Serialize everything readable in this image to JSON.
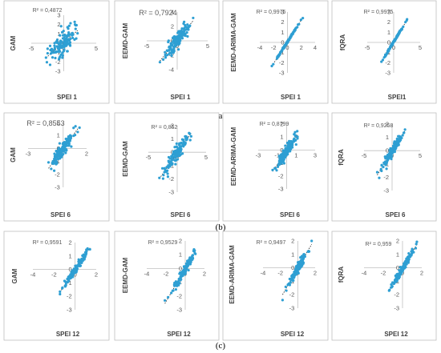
{
  "panel_labels": [
    "(a)",
    "(b)",
    "(c)"
  ],
  "chart_data": [
    {
      "type": "scatter",
      "ylabel": "GAM",
      "xlabel": "SPEI 1",
      "annotation": "R² = 0,4872",
      "xlim": [
        -5,
        5
      ],
      "ylim": [
        -3,
        3
      ],
      "xticks": [
        "-5",
        "0",
        "5"
      ],
      "yticks": [
        "3",
        "2",
        "1",
        "0",
        "-1",
        "-2",
        "-3"
      ],
      "r2": 0.4872
    },
    {
      "type": "scatter",
      "ylabel": "EEMD-GAM",
      "xlabel": "SPEI 1",
      "annotation": "R² = 0,7924",
      "xlim": [
        -5,
        5
      ],
      "ylim": [
        -4,
        4
      ],
      "xticks": [
        "-5",
        "0",
        "5"
      ],
      "yticks": [
        "4",
        "2",
        "0",
        "-2",
        "-4"
      ],
      "r2": 0.7924
    },
    {
      "type": "scatter",
      "ylabel": "EEMD-ARIMA-GAM",
      "xlabel": "SPEI 1",
      "annotation": "R² = 0,9975",
      "xlim": [
        -4,
        4
      ],
      "ylim": [
        -3,
        3
      ],
      "xticks": [
        "-4",
        "-2",
        "0",
        "2",
        "4"
      ],
      "yticks": [
        "3",
        "2",
        "1",
        "0",
        "-1",
        "-2",
        "-3"
      ],
      "r2": 0.9975
    },
    {
      "type": "scatter",
      "ylabel": "fQRA",
      "xlabel": "SPEI1",
      "annotation": "R² = 0,9975",
      "xlim": [
        -5,
        5
      ],
      "ylim": [
        -3,
        3
      ],
      "xticks": [
        "-5",
        "0",
        "5"
      ],
      "yticks": [
        "3",
        "2",
        "1",
        "0",
        "-1",
        "-2",
        "-3"
      ],
      "r2": 0.9975
    },
    {
      "type": "scatter",
      "ylabel": "GAM",
      "xlabel": "SPEI 6",
      "annotation": "R² = 0,8553",
      "xlim": [
        -3,
        2
      ],
      "ylim": [
        -3,
        2
      ],
      "xticks": [
        "-3",
        "2"
      ],
      "yticks": [
        "2",
        "1",
        "0",
        "-1",
        "-2",
        "-3"
      ],
      "r2": 0.8553
    },
    {
      "type": "scatter",
      "ylabel": "EEMD-GAM",
      "xlabel": "SPEI 6",
      "annotation": "R² = 0,852",
      "xlim": [
        -5,
        5
      ],
      "ylim": [
        -3,
        2
      ],
      "xticks": [
        "-5",
        "0",
        "5"
      ],
      "yticks": [
        "2",
        "1",
        "0",
        "-1",
        "-2",
        "-3"
      ],
      "r2": 0.852
    },
    {
      "type": "scatter",
      "ylabel": "EEMD-ARIMA-GAM",
      "xlabel": "SPEI 6",
      "annotation": "R² = 0,8799",
      "xlim": [
        -3,
        3
      ],
      "ylim": [
        -3,
        2
      ],
      "xticks": [
        "-3",
        "-1",
        "1",
        "3"
      ],
      "yticks": [
        "2",
        "1",
        "0",
        "-1",
        "-2",
        "-3"
      ],
      "r2": 0.8799
    },
    {
      "type": "scatter",
      "ylabel": "fQRA",
      "xlabel": "SPEI 6",
      "annotation": "R² = 0,9258",
      "xlim": [
        -5,
        5
      ],
      "ylim": [
        -3,
        2
      ],
      "xticks": [
        "-5",
        "0",
        "5"
      ],
      "yticks": [
        "2",
        "1",
        "0",
        "-1",
        "-2",
        "-3"
      ],
      "r2": 0.9258
    },
    {
      "type": "scatter",
      "ylabel": "GAM",
      "xlabel": "SPEI 12",
      "annotation": "R² = 0,9591",
      "xlim": [
        -4,
        2
      ],
      "ylim": [
        -3,
        2
      ],
      "xticks": [
        "-4",
        "-2",
        "0",
        "2"
      ],
      "yticks": [
        "2",
        "1",
        "0",
        "-1",
        "-2",
        "-3"
      ],
      "r2": 0.9591
    },
    {
      "type": "scatter",
      "ylabel": "EEMD-GAM",
      "xlabel": "SPEI 12",
      "annotation": "R² = 0,9529",
      "xlim": [
        -4,
        2
      ],
      "ylim": [
        -3,
        2
      ],
      "xticks": [
        "-4",
        "-2",
        "0",
        "2"
      ],
      "yticks": [
        "2",
        "1",
        "0",
        "-1",
        "-2",
        "-3"
      ],
      "r2": 0.9529
    },
    {
      "type": "scatter",
      "ylabel": "EEMD-ARIMA-GAM",
      "xlabel": "SPEI 12",
      "annotation": "R² = 0,9497",
      "xlim": [
        -4,
        2
      ],
      "ylim": [
        -3,
        2
      ],
      "xticks": [
        "-4",
        "-2",
        "0",
        "2"
      ],
      "yticks": [
        "2",
        "1",
        "0",
        "-1",
        "-2",
        "-3"
      ],
      "r2": 0.9497
    },
    {
      "type": "scatter",
      "ylabel": "fQRA",
      "xlabel": "SPEI 12",
      "annotation": "R² = 0,959",
      "xlim": [
        -4,
        2
      ],
      "ylim": [
        -3,
        2
      ],
      "xticks": [
        "-4",
        "-2",
        "0",
        "2"
      ],
      "yticks": [
        "2",
        "1",
        "0",
        "-1",
        "-2",
        "-3"
      ],
      "r2": 0.959
    }
  ]
}
